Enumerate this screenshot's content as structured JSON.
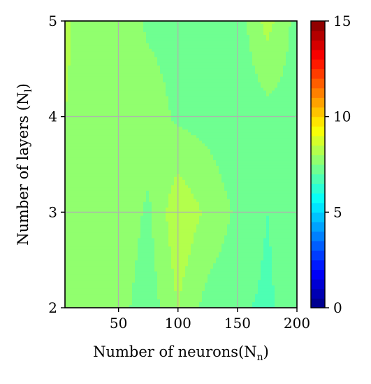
{
  "chart_data": {
    "type": "heatmap",
    "subtype": "filled-contour",
    "xlabel": "Number of neurons(N",
    "xlabel_sub": "n",
    "xlabel_suffix": ")",
    "ylabel": "Number of layers (N",
    "ylabel_sub": "l",
    "ylabel_suffix": ")",
    "x": [
      5,
      25,
      50,
      75,
      100,
      125,
      150,
      175,
      200
    ],
    "y": [
      2,
      3,
      4,
      5
    ],
    "z": [
      [
        7.6,
        8.0,
        7.7,
        7.2,
        8.0,
        7.3,
        7.1,
        6.9,
        7.3
      ],
      [
        8.0,
        7.8,
        7.9,
        7.4,
        8.4,
        7.9,
        7.4,
        7.0,
        7.3
      ],
      [
        8.0,
        7.5,
        7.9,
        7.8,
        7.4,
        7.3,
        7.1,
        7.3,
        7.3
      ],
      [
        8.2,
        7.5,
        7.9,
        7.4,
        7.3,
        7.4,
        7.2,
        8.2,
        7.3
      ]
    ],
    "xlim": [
      5,
      200
    ],
    "ylim": [
      2,
      5
    ],
    "x_ticks": [
      "50",
      "100",
      "150",
      "200"
    ],
    "x_tick_values": [
      50,
      100,
      150,
      200
    ],
    "y_ticks": [
      "2",
      "3",
      "4",
      "5"
    ],
    "y_tick_values": [
      2,
      3,
      4,
      5
    ],
    "grid": true,
    "colormap": "jet",
    "colorbar": {
      "min": 0,
      "max": 15,
      "ticks": [
        "0",
        "5",
        "10",
        "15"
      ],
      "tick_values": [
        0,
        5,
        10,
        15
      ]
    }
  }
}
